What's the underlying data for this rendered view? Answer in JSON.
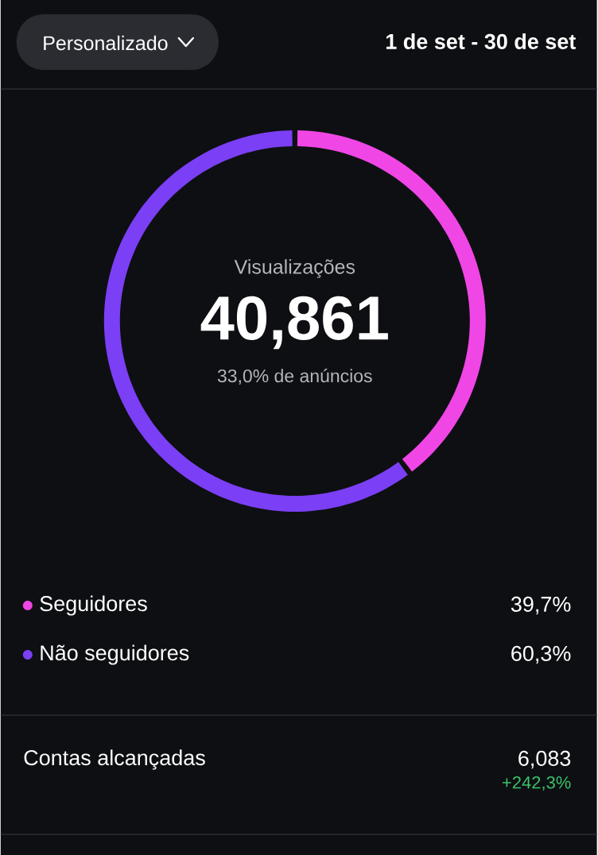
{
  "chart_data": {
    "type": "donut",
    "title": "Visualizações",
    "subtitle": "40,861",
    "categories": [
      "Seguidores",
      "Não seguidores"
    ],
    "values": [
      39.7,
      60.3
    ],
    "colors": [
      "#f046e6",
      "#7b3ff5"
    ],
    "value_labels": [
      "39,7%",
      "60,3%"
    ],
    "legend": "bottom",
    "annotations": [
      "Personalizado",
      "1 de set - 30 de set",
      "33,0% de anúncios",
      "Contas alcançadas",
      "6,083",
      "+242,3%"
    ]
  }
}
